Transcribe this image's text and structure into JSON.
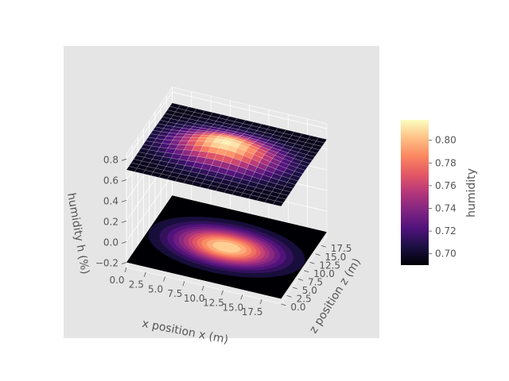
{
  "chart_data": {
    "type": "surface3d",
    "title": "",
    "surface": {
      "x_range": [
        0,
        20
      ],
      "z_range": [
        0,
        20
      ],
      "grid_cells": 19,
      "peak_position": [
        10,
        10
      ],
      "peak_value": 0.815,
      "base_value": 0.695,
      "colormap": "magma",
      "projected_contour": true,
      "contour_offset": -0.2
    },
    "axes": {
      "x": {
        "label": "x position x (m)",
        "ticks": [
          "0.0",
          "2.5",
          "5.0",
          "7.5",
          "10.0",
          "12.5",
          "15.0",
          "17.5"
        ],
        "range": [
          0,
          20
        ]
      },
      "z": {
        "label": "z position z (m)",
        "ticks": [
          "0.0",
          "2.5",
          "5.0",
          "7.5",
          "10.0",
          "12.5",
          "15.0",
          "17.5"
        ],
        "range": [
          0,
          20
        ]
      },
      "y": {
        "label": "humidity h (%)",
        "ticks": [
          "−0.2",
          "0.0",
          "0.2",
          "0.4",
          "0.6",
          "0.8"
        ],
        "range": [
          -0.25,
          0.85
        ]
      }
    },
    "colorbar": {
      "label": "humidity",
      "ticks": [
        "0.70",
        "0.72",
        "0.74",
        "0.76",
        "0.78",
        "0.80"
      ],
      "tick_values": [
        0.7,
        0.72,
        0.74,
        0.76,
        0.78,
        0.8
      ],
      "range": [
        0.69,
        0.818
      ]
    },
    "grid": true,
    "background": "#e5e5e5"
  }
}
